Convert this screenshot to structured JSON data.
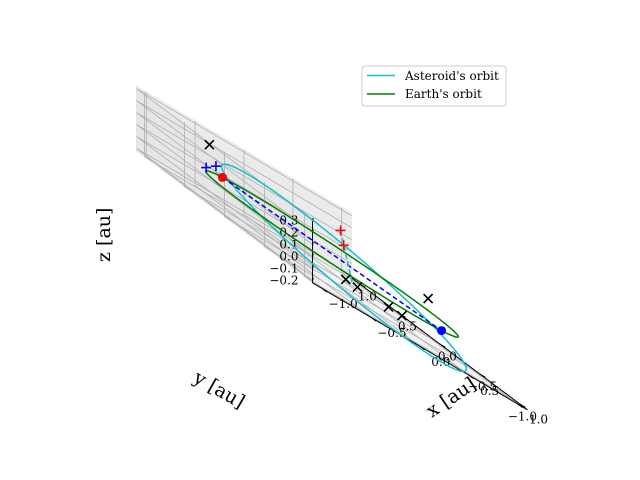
{
  "chart_data": {
    "type": "line3d",
    "xlabel": "x [au]",
    "ylabel": "y [au]",
    "zlabel": "z [au]",
    "x_ticks": [
      "−1.0",
      "−0.5",
      "0.0",
      "0.5",
      "1.0"
    ],
    "y_ticks": [
      "−1.0",
      "−0.5",
      "0.0",
      "0.5",
      "1.0"
    ],
    "z_ticks": [
      "−0.2",
      "−0.1",
      "0.0",
      "0.1",
      "0.2",
      "0.3"
    ],
    "xlim": [
      -1.1,
      1.1
    ],
    "ylim": [
      -1.1,
      1.1
    ],
    "zlim": [
      -0.22,
      0.32
    ],
    "grid": true,
    "legend_position": "top-right",
    "series": [
      {
        "name": "Asteroid's orbit",
        "color": "#17becf",
        "kind": "ellipse",
        "a": 1.0,
        "e": 0.2,
        "inclination_deg": 12,
        "node_deg": 20,
        "peri_deg": 60
      },
      {
        "name": "Earth's orbit",
        "color": "#008000",
        "kind": "circle",
        "radius": 1.0
      }
    ],
    "markers": [
      {
        "kind": "dot",
        "color": "#ff0000",
        "x": -0.36,
        "y": 0.93,
        "z": 0.0
      },
      {
        "kind": "dot",
        "color": "#0000ff",
        "x": 0.36,
        "y": -0.93,
        "z": 0.0
      },
      {
        "kind": "plus",
        "color": "#0000ff",
        "x": -0.41,
        "y": 0.95,
        "z": 0.06
      },
      {
        "kind": "plus",
        "color": "#0000ff",
        "x": -0.51,
        "y": 0.95,
        "z": 0.0
      },
      {
        "kind": "plus",
        "color": "#ff0000",
        "x": 0.62,
        "y": 0.65,
        "z": 0.17
      },
      {
        "kind": "plus",
        "color": "#ff0000",
        "x": 0.66,
        "y": 0.66,
        "z": 0.06
      },
      {
        "kind": "x",
        "color": "#000000",
        "x": -0.42,
        "y": 1.02,
        "z": 0.2
      },
      {
        "kind": "x",
        "color": "#000000",
        "x": 1.0,
        "y": 0.02,
        "z": 0.1
      },
      {
        "kind": "x",
        "color": "#000000",
        "x": -0.35,
        "y": -0.6,
        "z": -0.08
      },
      {
        "kind": "x",
        "color": "#000000",
        "x": -0.28,
        "y": -0.66,
        "z": -0.08
      },
      {
        "kind": "x",
        "color": "#000000",
        "x": -0.06,
        "y": -0.78,
        "z": -0.08
      },
      {
        "kind": "x",
        "color": "#000000",
        "x": 0.02,
        "y": -0.85,
        "z": -0.08
      }
    ],
    "lines": [
      {
        "color": "#0000ff",
        "style": "dashed",
        "from": [
          -0.36,
          0.93,
          0.0
        ],
        "to": [
          0.36,
          -0.93,
          0.0
        ]
      },
      {
        "color": "#17becf",
        "style": "dashed",
        "from": [
          0.62,
          0.65,
          0.17
        ],
        "to": [
          -0.3,
          -0.62,
          -0.08
        ]
      }
    ]
  }
}
